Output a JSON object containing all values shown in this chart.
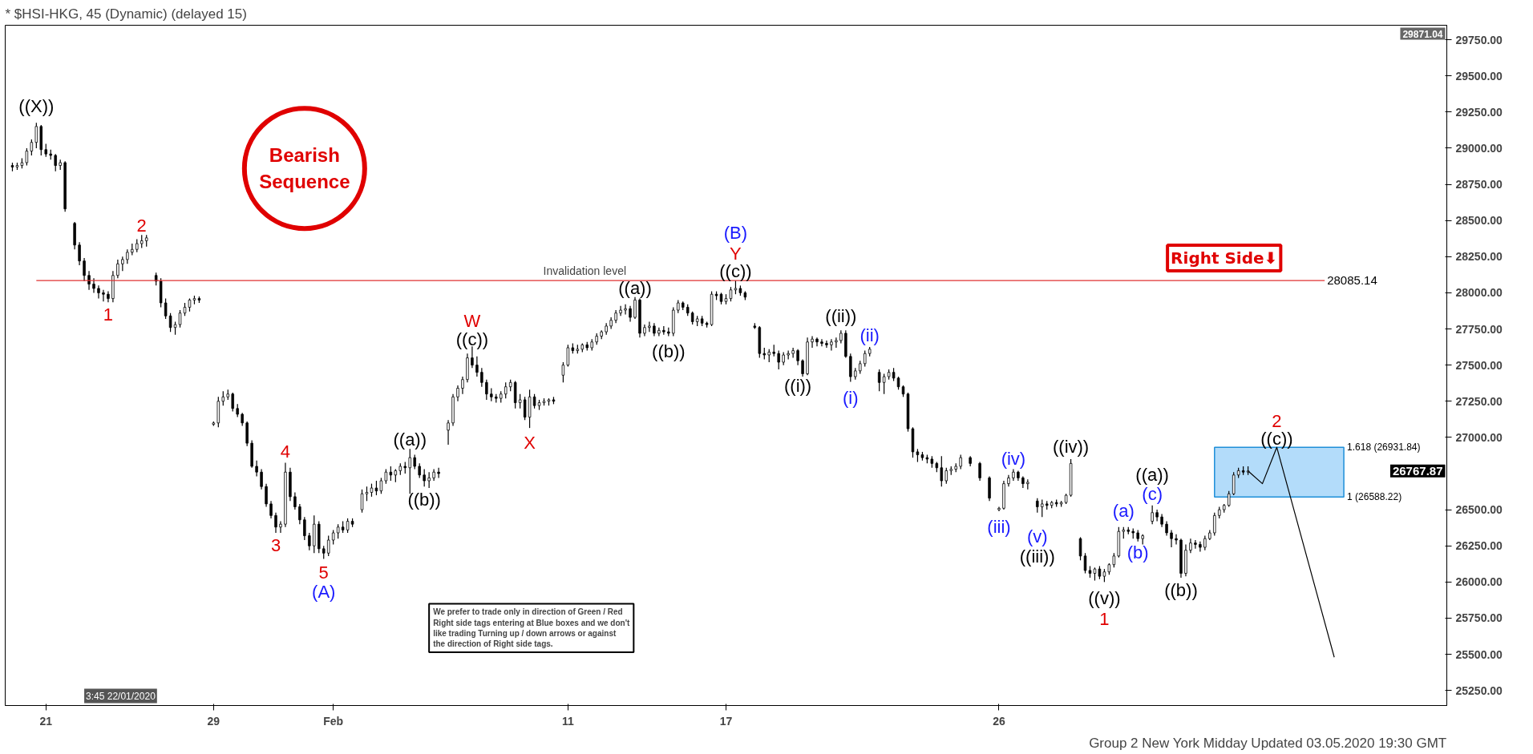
{
  "chart_data": {
    "type": "candlestick",
    "title": "* $HSI-HKG, 45 (Dynamic) (delayed 15)",
    "ylim": [
      25146,
      29850
    ],
    "yticks": [
      {
        "value": 25250,
        "label": "25250.00"
      },
      {
        "value": 25500,
        "label": "25500.00"
      },
      {
        "value": 25750,
        "label": "25750.00"
      },
      {
        "value": 26000,
        "label": "26000.00"
      },
      {
        "value": 26250,
        "label": "26250.00"
      },
      {
        "value": 26500,
        "label": "26500.00"
      },
      {
        "value": 27000,
        "label": "27000.00"
      },
      {
        "value": 27250,
        "label": "27250.00"
      },
      {
        "value": 27500,
        "label": "27500.00"
      },
      {
        "value": 27750,
        "label": "27750.00"
      },
      {
        "value": 28000,
        "label": "28000.00"
      },
      {
        "value": 28250,
        "label": "28250.00"
      },
      {
        "value": 28500,
        "label": "28500.00"
      },
      {
        "value": 28750,
        "label": "28750.00"
      },
      {
        "value": 29000,
        "label": "29000.00"
      },
      {
        "value": 29250,
        "label": "29250.00"
      },
      {
        "value": 29500,
        "label": "29500.00"
      },
      {
        "value": 29750,
        "label": "29750.00"
      }
    ],
    "grid": false,
    "color": "#000000",
    "categories": [
      null,
      null,
      null,
      null,
      null,
      null,
      null,
      null,
      "21",
      null,
      null,
      null,
      null,
      null,
      null,
      null,
      null,
      null,
      null,
      null,
      null,
      null,
      null,
      null,
      null,
      null,
      null,
      null,
      null,
      null,
      null,
      null,
      null,
      null,
      null,
      null,
      null,
      null,
      null,
      null,
      null,
      null,
      null,
      "29",
      null,
      null,
      null,
      null,
      null,
      null,
      null,
      null,
      null,
      null,
      null,
      null,
      null,
      null,
      null,
      null,
      null,
      null,
      null,
      null,
      null,
      null,
      null,
      null,
      "Feb",
      null,
      null,
      null,
      null,
      null,
      null,
      null,
      null,
      null,
      null,
      null,
      null,
      null,
      null,
      null,
      null,
      null,
      null,
      null,
      null,
      null,
      null,
      null,
      null,
      null,
      null,
      null,
      null,
      null,
      null,
      null,
      null,
      null,
      null,
      null,
      null,
      null,
      null,
      null,
      null,
      null,
      null,
      null,
      null,
      null,
      null,
      null,
      null,
      "11",
      null,
      null,
      null,
      null,
      null,
      null,
      null,
      null,
      null,
      null,
      null,
      null,
      null,
      null,
      null,
      null,
      null,
      null,
      null,
      null,
      null,
      null,
      null,
      null,
      null,
      null,
      null,
      null,
      null,
      null,
      null,
      null,
      "17",
      null,
      null,
      null,
      null,
      null,
      null,
      null,
      null,
      null,
      null,
      null,
      null,
      null,
      null,
      null,
      null,
      null,
      null,
      null,
      null,
      null,
      null,
      null,
      null,
      null,
      null,
      null,
      null,
      null,
      null,
      null,
      null,
      null,
      null,
      null,
      null,
      null,
      null,
      null,
      null,
      null,
      null,
      null,
      null,
      null,
      null,
      null,
      null,
      null,
      null,
      null,
      null,
      null,
      null,
      null,
      null,
      "26",
      null,
      null,
      null,
      null,
      null,
      null,
      null,
      null,
      null,
      null,
      null,
      null,
      null,
      null,
      null,
      null,
      null,
      null,
      null,
      null,
      null,
      null,
      null,
      null,
      null,
      null,
      null,
      null,
      null,
      null,
      null,
      null,
      null,
      null,
      null,
      null,
      null,
      null,
      null,
      null,
      null,
      null,
      null,
      null,
      null,
      null,
      null,
      null,
      null,
      null,
      null,
      null,
      null,
      null,
      null,
      null,
      null,
      null,
      null,
      null,
      null,
      null,
      null,
      null,
      null,
      null,
      null,
      null,
      null,
      null,
      null,
      null,
      null,
      null,
      null,
      null,
      null,
      null,
      null,
      null,
      null,
      null,
      null,
      null,
      null,
      null,
      null,
      null,
      null,
      null,
      null,
      null,
      null
    ],
    "ohlc": [
      null,
      [
        28880,
        28900,
        28840,
        28870
      ],
      [
        28870,
        28900,
        28850,
        28880
      ],
      [
        28880,
        28930,
        28860,
        28900
      ],
      [
        28900,
        29000,
        28880,
        28980
      ],
      [
        28980,
        29060,
        28950,
        29040
      ],
      [
        29040,
        29175,
        29000,
        29150
      ],
      [
        29150,
        29160,
        28950,
        28990
      ],
      [
        28990,
        29030,
        28940,
        28960
      ],
      [
        28960,
        28990,
        28920,
        28950
      ],
      [
        28950,
        28960,
        28840,
        28880
      ],
      [
        28880,
        28920,
        28850,
        28900
      ],
      [
        28900,
        28910,
        28560,
        28580
      ],
      null,
      [
        28480,
        28490,
        28300,
        28330
      ],
      [
        28330,
        28350,
        28190,
        28220
      ],
      [
        28220,
        28240,
        28080,
        28120
      ],
      [
        28120,
        28150,
        28020,
        28060
      ],
      [
        28060,
        28100,
        28000,
        28030
      ],
      [
        28030,
        28050,
        27960,
        28000
      ],
      [
        28000,
        28020,
        27940,
        27990
      ],
      [
        27990,
        28010,
        27935,
        27960
      ],
      [
        27960,
        28150,
        27935,
        28120
      ],
      [
        28120,
        28230,
        28100,
        28200
      ],
      [
        28200,
        28250,
        28150,
        28230
      ],
      [
        28230,
        28300,
        28200,
        28280
      ],
      [
        28280,
        28340,
        28260,
        28300
      ],
      [
        28300,
        28370,
        28280,
        28340
      ],
      [
        28340,
        28400,
        28310,
        28360
      ],
      [
        28360,
        28400,
        28320,
        28380
      ],
      null,
      [
        28120,
        28140,
        28050,
        28080
      ],
      [
        28080,
        28100,
        27900,
        27930
      ],
      [
        27930,
        27960,
        27820,
        27840
      ],
      [
        27840,
        27860,
        27730,
        27760
      ],
      [
        27760,
        27800,
        27710,
        27780
      ],
      [
        27780,
        27880,
        27760,
        27860
      ],
      [
        27860,
        27930,
        27840,
        27900
      ],
      [
        27900,
        27960,
        27870,
        27950
      ],
      [
        27950,
        27980,
        27920,
        27960
      ],
      [
        27960,
        27975,
        27930,
        27950
      ],
      null,
      null,
      [
        27090,
        27110,
        27080,
        27100
      ],
      [
        27100,
        27280,
        27070,
        27250
      ],
      [
        27250,
        27320,
        27220,
        27280
      ],
      [
        27280,
        27330,
        27260,
        27300
      ],
      [
        27300,
        27310,
        27180,
        27200
      ],
      [
        27200,
        27230,
        27140,
        27160
      ],
      [
        27160,
        27170,
        27080,
        27100
      ],
      [
        27100,
        27110,
        26940,
        26960
      ],
      [
        26960,
        26980,
        26790,
        26800
      ],
      [
        26800,
        26840,
        26730,
        26760
      ],
      [
        26760,
        26780,
        26640,
        26660
      ],
      [
        26660,
        26680,
        26520,
        26540
      ],
      [
        26540,
        26560,
        26440,
        26460
      ],
      [
        26460,
        26480,
        26340,
        26380
      ],
      [
        26380,
        26420,
        26340,
        26400
      ],
      [
        26400,
        26825,
        26380,
        26760
      ],
      [
        26760,
        26790,
        26560,
        26590
      ],
      [
        26590,
        26620,
        26500,
        26520
      ],
      [
        26520,
        26540,
        26400,
        26430
      ],
      [
        26430,
        26450,
        26290,
        26320
      ],
      [
        26320,
        26340,
        26220,
        26250
      ],
      [
        26250,
        26460,
        26200,
        26400
      ],
      [
        26400,
        26420,
        26200,
        26230
      ],
      [
        26230,
        26250,
        26160,
        26200
      ],
      [
        26200,
        26320,
        26180,
        26290
      ],
      [
        26290,
        26360,
        26260,
        26340
      ],
      [
        26340,
        26400,
        26300,
        26380
      ],
      [
        26380,
        26420,
        26340,
        26360
      ],
      [
        26360,
        26440,
        26340,
        26420
      ],
      [
        26420,
        26440,
        26380,
        26400
      ],
      null,
      [
        26500,
        26640,
        26480,
        26610
      ],
      [
        26610,
        26660,
        26560,
        26620
      ],
      [
        26620,
        26680,
        26590,
        26650
      ],
      [
        26650,
        26700,
        26600,
        26630
      ],
      [
        26630,
        26720,
        26610,
        26700
      ],
      [
        26700,
        26780,
        26680,
        26760
      ],
      [
        26760,
        26800,
        26700,
        26740
      ],
      [
        26740,
        26780,
        26690,
        26770
      ],
      [
        26770,
        26820,
        26740,
        26800
      ],
      [
        26800,
        26830,
        26750,
        26790
      ],
      [
        26790,
        26920,
        26610,
        26860
      ],
      [
        26860,
        26880,
        26780,
        26800
      ],
      [
        26800,
        26820,
        26720,
        26740
      ],
      [
        26740,
        26780,
        26660,
        26700
      ],
      [
        26700,
        26760,
        26650,
        26720
      ],
      [
        26720,
        26780,
        26700,
        26760
      ],
      [
        26760,
        26790,
        26720,
        26750
      ],
      null,
      [
        27050,
        27120,
        26950,
        27100
      ],
      [
        27100,
        27300,
        27080,
        27280
      ],
      [
        27280,
        27360,
        27250,
        27340
      ],
      [
        27340,
        27420,
        27300,
        27400
      ],
      [
        27400,
        27580,
        27380,
        27550
      ],
      [
        27550,
        27630,
        27480,
        27500
      ],
      [
        27500,
        27560,
        27420,
        27450
      ],
      [
        27450,
        27480,
        27350,
        27380
      ],
      [
        27380,
        27400,
        27260,
        27300
      ],
      [
        27300,
        27340,
        27250,
        27280
      ],
      [
        27280,
        27300,
        27240,
        27270
      ],
      [
        27270,
        27320,
        27240,
        27300
      ],
      [
        27300,
        27380,
        27270,
        27350
      ],
      [
        27350,
        27400,
        27320,
        27380
      ],
      [
        27380,
        27390,
        27200,
        27240
      ],
      [
        27240,
        27300,
        27200,
        27260
      ],
      [
        27260,
        27280,
        27120,
        27140
      ],
      [
        27140,
        27330,
        27065,
        27280
      ],
      [
        27280,
        27300,
        27200,
        27220
      ],
      [
        27220,
        27260,
        27190,
        27240
      ],
      [
        27240,
        27270,
        27220,
        27250
      ],
      [
        27250,
        27270,
        27220,
        27260
      ],
      [
        27260,
        27280,
        27230,
        27250
      ],
      null,
      [
        27430,
        27520,
        27380,
        27500
      ],
      [
        27500,
        27640,
        27490,
        27620
      ],
      [
        27620,
        27650,
        27580,
        27600
      ],
      [
        27600,
        27640,
        27580,
        27610
      ],
      [
        27610,
        27650,
        27590,
        27640
      ],
      [
        27640,
        27660,
        27600,
        27620
      ],
      [
        27620,
        27680,
        27600,
        27660
      ],
      [
        27660,
        27720,
        27640,
        27700
      ],
      [
        27700,
        27740,
        27680,
        27730
      ],
      [
        27730,
        27790,
        27710,
        27770
      ],
      [
        27770,
        27830,
        27750,
        27810
      ],
      [
        27810,
        27880,
        27790,
        27860
      ],
      [
        27860,
        27910,
        27840,
        27880
      ],
      [
        27880,
        27920,
        27850,
        27890
      ],
      [
        27890,
        27910,
        27800,
        27830
      ],
      [
        27830,
        27970,
        27820,
        27950
      ],
      [
        27950,
        27960,
        27690,
        27720
      ],
      [
        27720,
        27780,
        27700,
        27760
      ],
      [
        27760,
        27800,
        27730,
        27770
      ],
      [
        27770,
        27790,
        27700,
        27720
      ],
      [
        27720,
        27760,
        27700,
        27740
      ],
      [
        27740,
        27770,
        27710,
        27730
      ],
      [
        27730,
        27760,
        27700,
        27720
      ],
      [
        27720,
        27900,
        27700,
        27880
      ],
      [
        27880,
        27950,
        27860,
        27930
      ],
      [
        27930,
        27940,
        27880,
        27900
      ],
      [
        27900,
        27920,
        27840,
        27860
      ],
      [
        27860,
        27870,
        27780,
        27800
      ],
      [
        27800,
        27840,
        27770,
        27820
      ],
      [
        27820,
        27840,
        27770,
        27790
      ],
      [
        27790,
        27800,
        27760,
        27780
      ],
      [
        27780,
        28010,
        27770,
        27990
      ],
      [
        27990,
        28010,
        27950,
        27980
      ],
      [
        27990,
        28000,
        27920,
        27940
      ],
      [
        27940,
        27990,
        27920,
        27960
      ],
      [
        27960,
        28040,
        27940,
        28020
      ],
      [
        28020,
        28085,
        27990,
        28030
      ],
      [
        28030,
        28050,
        27980,
        28000
      ],
      [
        28000,
        28010,
        27950,
        27970
      ],
      null,
      [
        27770,
        27790,
        27750,
        27760
      ],
      [
        27760,
        27770,
        27550,
        27580
      ],
      [
        27580,
        27620,
        27540,
        27570
      ],
      [
        27570,
        27610,
        27520,
        27590
      ],
      [
        27590,
        27640,
        27560,
        27580
      ],
      [
        27580,
        27600,
        27470,
        27520
      ],
      [
        27520,
        27590,
        27500,
        27570
      ],
      [
        27570,
        27600,
        27540,
        27580
      ],
      [
        27580,
        27620,
        27550,
        27600
      ],
      [
        27600,
        27610,
        27500,
        27530
      ],
      [
        27530,
        27540,
        27420,
        27440
      ],
      [
        27440,
        27690,
        27430,
        27660
      ],
      [
        27660,
        27700,
        27620,
        27680
      ],
      [
        27680,
        27690,
        27630,
        27660
      ],
      [
        27660,
        27680,
        27630,
        27650
      ],
      [
        27650,
        27670,
        27620,
        27640
      ],
      [
        27640,
        27680,
        27600,
        27660
      ],
      [
        27660,
        27690,
        27620,
        27670
      ],
      [
        27670,
        27740,
        27650,
        27720
      ],
      [
        27720,
        27740,
        27550,
        27560
      ],
      [
        27560,
        27580,
        27385,
        27420
      ],
      [
        27420,
        27480,
        27400,
        27460
      ],
      [
        27460,
        27530,
        27440,
        27510
      ],
      [
        27510,
        27600,
        27490,
        27580
      ],
      [
        27580,
        27625,
        27560,
        27610
      ],
      null,
      [
        27450,
        27470,
        27320,
        27380
      ],
      [
        27380,
        27440,
        27300,
        27420
      ],
      [
        27420,
        27470,
        27400,
        27450
      ],
      [
        27450,
        27480,
        27390,
        27410
      ],
      [
        27410,
        27420,
        27330,
        27350
      ],
      [
        27350,
        27360,
        27280,
        27300
      ],
      [
        27300,
        27310,
        27040,
        27060
      ],
      [
        27060,
        27070,
        26860,
        26900
      ],
      [
        26900,
        26920,
        26830,
        26880
      ],
      [
        26880,
        26900,
        26840,
        26860
      ],
      [
        26860,
        26880,
        26820,
        26850
      ],
      [
        26850,
        26870,
        26790,
        26820
      ],
      [
        26820,
        26830,
        26760,
        26790
      ],
      [
        26790,
        26870,
        26660,
        26700
      ],
      [
        26700,
        26790,
        26680,
        26770
      ],
      [
        26770,
        26800,
        26740,
        26780
      ],
      [
        26780,
        26820,
        26760,
        26800
      ],
      [
        26800,
        26880,
        26780,
        26860
      ],
      null,
      [
        26860,
        26870,
        26800,
        26820
      ],
      null,
      [
        26820,
        26830,
        26700,
        26720
      ],
      null,
      [
        26720,
        26730,
        26560,
        26580
      ],
      null,
      [
        26500,
        26520,
        26490,
        26510
      ],
      [
        26510,
        26700,
        26500,
        26680
      ],
      [
        26680,
        26740,
        26660,
        26720
      ],
      [
        26720,
        26780,
        26700,
        26760
      ],
      [
        26760,
        26770,
        26700,
        26720
      ],
      [
        26720,
        26730,
        26650,
        26680
      ],
      [
        26680,
        26710,
        26640,
        26690
      ],
      null,
      [
        26560,
        26580,
        26480,
        26520
      ],
      [
        26520,
        26570,
        26450,
        26540
      ],
      [
        26540,
        26560,
        26500,
        26530
      ],
      [
        26530,
        26560,
        26510,
        26550
      ],
      [
        26550,
        26570,
        26520,
        26540
      ],
      [
        26540,
        26560,
        26520,
        26550
      ],
      [
        26550,
        26610,
        26540,
        26600
      ],
      [
        26600,
        26850,
        26590,
        26820
      ],
      null,
      [
        26300,
        26310,
        26150,
        26180
      ],
      [
        26180,
        26200,
        26060,
        26080
      ],
      [
        26080,
        26110,
        26030,
        26060
      ],
      [
        26060,
        26100,
        26010,
        26090
      ],
      [
        26090,
        26110,
        26020,
        26040
      ],
      [
        26040,
        26090,
        26000,
        26070
      ],
      [
        26070,
        26130,
        26050,
        26120
      ],
      [
        26120,
        26200,
        26100,
        26180
      ],
      [
        26180,
        26380,
        26170,
        26350
      ],
      [
        26350,
        26380,
        26300,
        26360
      ],
      [
        26360,
        26380,
        26330,
        26350
      ],
      [
        26350,
        26370,
        26300,
        26340
      ],
      [
        26340,
        26360,
        26280,
        26300
      ],
      [
        26300,
        26330,
        26260,
        26320
      ],
      null,
      [
        26420,
        26530,
        26400,
        26480
      ],
      [
        26480,
        26500,
        26420,
        26450
      ],
      [
        26450,
        26470,
        26380,
        26400
      ],
      [
        26400,
        26420,
        26320,
        26340
      ],
      [
        26340,
        26360,
        26240,
        26300
      ],
      [
        26300,
        26330,
        26260,
        26290
      ],
      [
        26290,
        26300,
        26030,
        26060
      ],
      [
        26060,
        26260,
        26040,
        26220
      ],
      [
        26220,
        26300,
        26200,
        26270
      ],
      [
        26270,
        26290,
        26230,
        26260
      ],
      [
        26260,
        26280,
        26210,
        26240
      ],
      [
        26240,
        26320,
        26220,
        26300
      ],
      [
        26300,
        26360,
        26290,
        26340
      ],
      [
        26340,
        26480,
        26320,
        26460
      ],
      [
        26460,
        26520,
        26440,
        26500
      ],
      [
        26500,
        26540,
        26480,
        26530
      ],
      [
        26530,
        26630,
        26520,
        26610
      ],
      [
        26610,
        26760,
        26600,
        26740
      ],
      [
        26740,
        26790,
        26720,
        26770
      ],
      [
        26770,
        26800,
        26740,
        26760
      ],
      [
        26760,
        26800,
        26740,
        26767.87
      ],
      null,
      null,
      null,
      null,
      null,
      null,
      null,
      null,
      null,
      null,
      null,
      null,
      null,
      null,
      null,
      null,
      null,
      null,
      null,
      null,
      null,
      null,
      null,
      null,
      null,
      null,
      null,
      null,
      null,
      null,
      null,
      null,
      null,
      null,
      null,
      null,
      null,
      null,
      null,
      null,
      null
    ],
    "series": [
      {
        "type": "line",
        "color": "#000000",
        "values": [
          null,
          null,
          null,
          null,
          null,
          null,
          null,
          null,
          null,
          null,
          null,
          null,
          null,
          null,
          null,
          null,
          null,
          null,
          null,
          null,
          null,
          null,
          null,
          null,
          null,
          null,
          null,
          null,
          null,
          null,
          null,
          null,
          null,
          null,
          null,
          null,
          null,
          null,
          null,
          null,
          null,
          null,
          null,
          null,
          null,
          null,
          null,
          null,
          null,
          null,
          null,
          null,
          null,
          null,
          null,
          null,
          null,
          null,
          null,
          null,
          null,
          null,
          null,
          null,
          null,
          null,
          null,
          null,
          null,
          null,
          null,
          null,
          null,
          null,
          null,
          null,
          null,
          null,
          null,
          null,
          null,
          null,
          null,
          null,
          null,
          null,
          null,
          null,
          null,
          null,
          null,
          null,
          null,
          null,
          null,
          null,
          null,
          null,
          null,
          null,
          null,
          null,
          null,
          null,
          null,
          null,
          null,
          null,
          null,
          null,
          null,
          null,
          null,
          null,
          null,
          null,
          null,
          null,
          null,
          null,
          null,
          null,
          null,
          null,
          null,
          null,
          null,
          null,
          null,
          null,
          null,
          null,
          null,
          null,
          null,
          null,
          null,
          null,
          null,
          null,
          null,
          null,
          null,
          null,
          null,
          null,
          null,
          null,
          null,
          null,
          null,
          null,
          null,
          null,
          null,
          null,
          null,
          null,
          null,
          null,
          null,
          null,
          null,
          null,
          null,
          null,
          null,
          null,
          null,
          null,
          null,
          null,
          null,
          null,
          null,
          null,
          null,
          null,
          null,
          null,
          null,
          null,
          null,
          null,
          null,
          null,
          null,
          null,
          null,
          null,
          null,
          null,
          null,
          null,
          null,
          null,
          null,
          null,
          null,
          null,
          null,
          null,
          null,
          null,
          null,
          null,
          null,
          null,
          null,
          null,
          null,
          null,
          null,
          null,
          null,
          null,
          null,
          null,
          null,
          null,
          null,
          null,
          null,
          null,
          null,
          null,
          null,
          null,
          null,
          null,
          null,
          null,
          null,
          null,
          null,
          null,
          null,
          null,
          null,
          null,
          null,
          null,
          null,
          null,
          null,
          null,
          null,
          null,
          null,
          null,
          null,
          null,
          null,
          null,
          null,
          null,
          null,
          null,
          null,
          26767.87,
          null,
          null,
          26680,
          null,
          null,
          26931.84,
          null,
          null,
          null,
          null,
          null,
          null,
          null,
          null,
          null,
          null,
          null,
          25480,
          null,
          null,
          null,
          null,
          null,
          null,
          null,
          null,
          null,
          null,
          null,
          null,
          null,
          null,
          null,
          null,
          null,
          null,
          null,
          null,
          null,
          null,
          null
        ]
      }
    ],
    "ref_lines": [
      {
        "axis": "y",
        "value": 28085.14,
        "label": "Invalidation level",
        "color": "#e03030"
      }
    ],
    "bands": [
      {
        "axis": "y",
        "from": 26588.22,
        "to": 26931.84,
        "color": "#b3dcfa"
      }
    ],
    "annotations": [
      "((X))",
      "1",
      "2",
      "3",
      "4",
      "5",
      "(A)",
      "((a))",
      "((b))",
      "W",
      "((c))",
      "X",
      "((a))",
      "((b))",
      "(B)",
      "Y",
      "((c))",
      "((i))",
      "((ii))",
      "(i)",
      "(ii)",
      "(iii)",
      "(iv)",
      "(v)",
      "((iii))",
      "((iv))",
      "((v))",
      "1",
      "(a)",
      "(b)",
      "(c)",
      "((a))",
      "((b))",
      "2",
      "((c))",
      "28085.14",
      "1.618 (26931.84)",
      "1 (26588.22)",
      "26767.87",
      "29871.04",
      "Bearish Sequence",
      "Right Side⬇",
      "We prefer to trade only in direction of Green / Red\nRight side tags entering at Blue boxes and we don't\nlike trading Turning up / down arrows or against\nthe direction of Right side tags.",
      "3:45 22/01/2020",
      "Group 2 New York Midday Updated 03.05.2020 19:30 GMT"
    ]
  }
}
